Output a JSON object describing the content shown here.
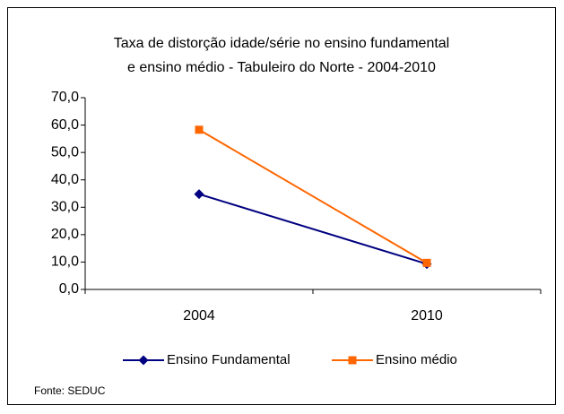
{
  "chart_data": {
    "type": "line",
    "title": [
      "Taxa de distorção idade/série no ensino fundamental",
      "e ensino médio - Tabuleiro do Norte -  2004-2010"
    ],
    "categories": [
      "2004",
      "2010"
    ],
    "series": [
      {
        "name": "Ensino Fundamental",
        "color": "#000080",
        "marker": "diamond",
        "values": [
          34.8,
          9.3
        ]
      },
      {
        "name": "Ensino médio",
        "color": "#FF6600",
        "marker": "square",
        "values": [
          58.3,
          9.7
        ]
      }
    ],
    "ylim": [
      0,
      70
    ],
    "yticks": [
      {
        "value": 0,
        "label": "0,0"
      },
      {
        "value": 10,
        "label": "10,0"
      },
      {
        "value": 20,
        "label": "20,0"
      },
      {
        "value": 30,
        "label": "30,0"
      },
      {
        "value": 40,
        "label": "40,0"
      },
      {
        "value": 50,
        "label": "50,0"
      },
      {
        "value": 60,
        "label": "60,0"
      },
      {
        "value": 70,
        "label": "70,0"
      }
    ],
    "legend": "bottom",
    "source": "Fonte: SEDUC"
  }
}
